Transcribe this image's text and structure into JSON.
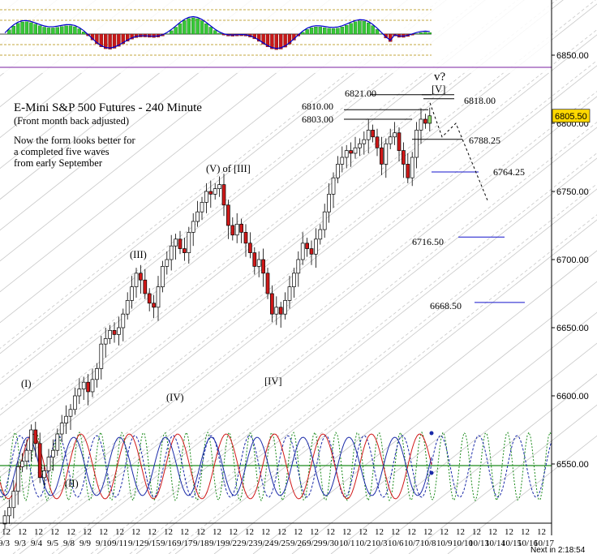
{
  "chart_data": {
    "type": "candlestick",
    "title": "E-Mini S&P 500 Futures - 240 Minute",
    "subtitle": "(Front month back adjusted)",
    "commentary": [
      "Now the form looks better for",
      "a completed five waves",
      "from early September"
    ],
    "price_axis": {
      "ticks": [
        "6850.00",
        "6800.00",
        "6750.00",
        "6700.00",
        "6650.00",
        "6600.00",
        "6550.00"
      ],
      "tick_values": [
        6850,
        6800,
        6750,
        6700,
        6650,
        6600,
        6550
      ],
      "ylim": [
        6505,
        6870
      ]
    },
    "current_price": {
      "value": 6805.5,
      "label": "6805.50"
    },
    "wave_labels": [
      {
        "text": "(I)",
        "price": 6604
      },
      {
        "text": "(II)",
        "price": 6535
      },
      {
        "text": "(III)",
        "price": 6698
      },
      {
        "text": "(IV)",
        "price": 6600
      },
      {
        "text": "(V) of [III]",
        "price": 6762
      },
      {
        "text": "[IV]",
        "price": 6612
      },
      {
        "text": "[V]",
        "price": 6815
      },
      {
        "text": "v?",
        "price": 6828
      }
    ],
    "levels": [
      {
        "label": "6821.00",
        "value": 6821.0
      },
      {
        "label": "6818.00",
        "value": 6818.0
      },
      {
        "label": "6810.00",
        "value": 6810.0
      },
      {
        "label": "6803.00",
        "value": 6803.0
      },
      {
        "label": "6788.25",
        "value": 6788.25
      },
      {
        "label": "6764.25",
        "value": 6764.25
      },
      {
        "label": "6716.50",
        "value": 6716.5
      },
      {
        "label": "6668.50",
        "value": 6668.5
      }
    ],
    "closes": [
      6512,
      6518,
      6530,
      6548,
      6552,
      6560,
      6575,
      6565,
      6540,
      6545,
      6555,
      6560,
      6572,
      6580,
      6585,
      6590,
      6600,
      6605,
      6610,
      6603,
      6612,
      6620,
      6638,
      6642,
      6648,
      6645,
      6650,
      6660,
      6670,
      6680,
      6690,
      6685,
      6675,
      6668,
      6665,
      6680,
      6695,
      6700,
      6710,
      6715,
      6708,
      6705,
      6720,
      6728,
      6735,
      6742,
      6750,
      6748,
      6752,
      6755,
      6740,
      6725,
      6718,
      6726,
      6720,
      6712,
      6705,
      6695,
      6700,
      6690,
      6675,
      6660,
      6665,
      6660,
      6670,
      6680,
      6690,
      6700,
      6712,
      6708,
      6704,
      6715,
      6722,
      6735,
      6748,
      6760,
      6770,
      6775,
      6780,
      6778,
      6782,
      6785,
      6788,
      6795,
      6790,
      6782,
      6770,
      6785,
      6790,
      6793,
      6780,
      6770,
      6760,
      6775,
      6795,
      6803,
      6800,
      6805.5
    ],
    "x_axis": {
      "ticks": [
        "12",
        "9/3",
        "9/4",
        "9/5",
        "9/8",
        "9/9",
        "9/10",
        "9/11",
        "9/12",
        "9/15",
        "9/16",
        "9/17",
        "9/18",
        "9/19",
        "9/22",
        "9/23",
        "9/24",
        "9/25",
        "9/26",
        "9/29",
        "9/30",
        "10/1",
        "10/2",
        "10/3",
        "10/6",
        "10/7",
        "10/8",
        "10/9",
        "10/10",
        "10/13",
        "10/14",
        "10/15",
        "10/16",
        "10/17"
      ]
    },
    "footer": "Next in 2:18:54",
    "grid": false
  }
}
